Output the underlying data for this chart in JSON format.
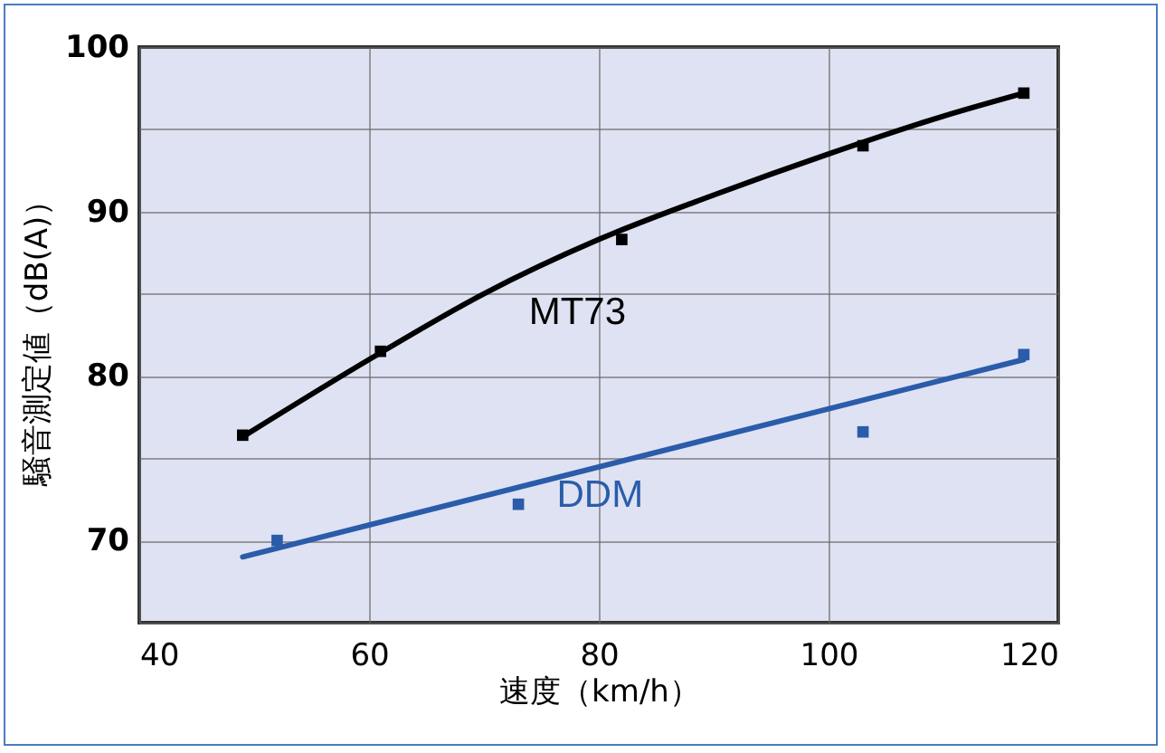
{
  "chart_data": {
    "type": "scatter",
    "xlabel": "速度（km/h）",
    "ylabel": "騒音測定値（dB(A)）",
    "xlim": [
      40,
      120
    ],
    "ylim": [
      65,
      100
    ],
    "xticks": [
      40,
      60,
      80,
      100,
      120
    ],
    "yticks": [
      {
        "value": 65,
        "label": null
      },
      70,
      {
        "value": 75,
        "label": null
      },
      80,
      {
        "value": 85,
        "label": null
      },
      90,
      {
        "value": 95,
        "label": null
      },
      100
    ],
    "grid": true,
    "marker": "square",
    "series": [
      {
        "type": "line",
        "marker": "none",
        "color": "#000000",
        "x": [
          49,
          60,
          70,
          80,
          90,
          100,
          110,
          117
        ],
        "values": [
          76.3,
          81,
          85,
          88.3,
          91,
          93.5,
          95.8,
          97.2
        ]
      },
      {
        "name": "MT73",
        "color": "#000000",
        "x": [
          49,
          61,
          82,
          103,
          117
        ],
        "values": [
          76.4,
          81.5,
          88.3,
          94,
          97.2
        ]
      },
      {
        "type": "line",
        "marker": "none",
        "color": "#2a5caa",
        "x": [
          49,
          117
        ],
        "values": [
          69,
          81
        ]
      },
      {
        "name": "DDM",
        "color": "#2a5caa",
        "x": [
          52,
          73,
          103,
          117
        ],
        "values": [
          70,
          72.2,
          76.6,
          81.3
        ]
      }
    ]
  }
}
